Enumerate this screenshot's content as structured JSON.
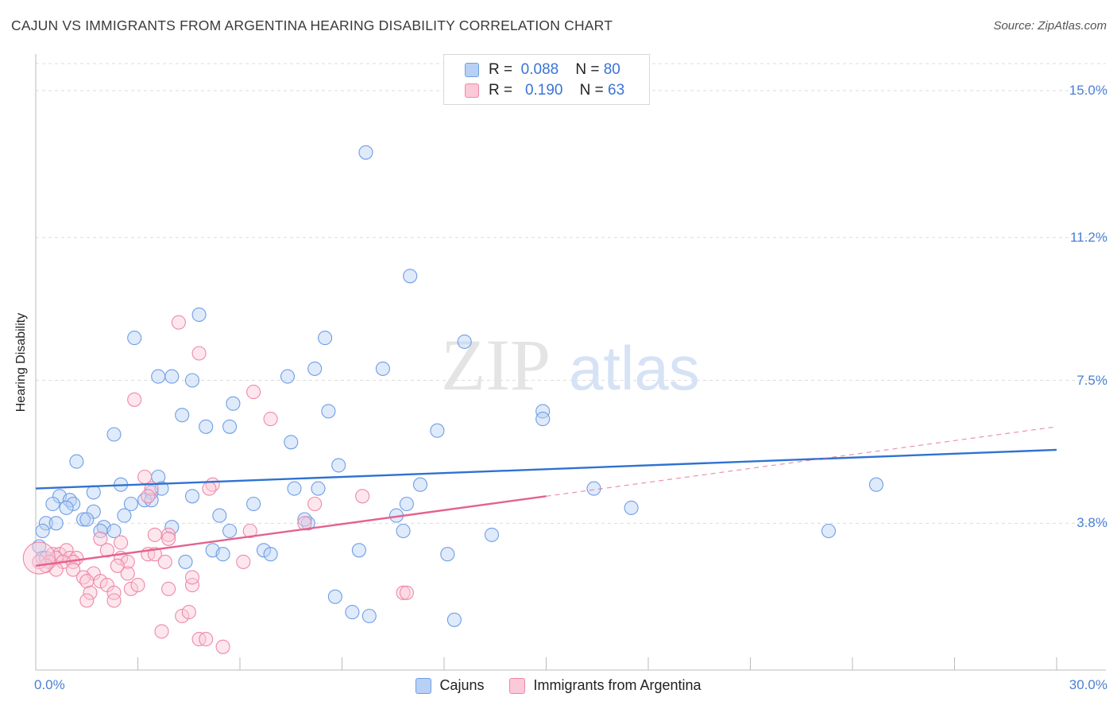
{
  "chart_data": {
    "type": "scatter",
    "title": "CAJUN VS IMMIGRANTS FROM ARGENTINA HEARING DISABILITY CORRELATION CHART",
    "source": "Source: ZipAtlas.com",
    "ylabel": "Hearing Disability",
    "xlabel": "",
    "xlim": [
      0,
      30
    ],
    "ylim": [
      0,
      15.7
    ],
    "x_tick_labels": [
      "0.0%",
      "30.0%"
    ],
    "y_ticks": [
      {
        "value": 15.0,
        "label": "15.0%"
      },
      {
        "value": 11.2,
        "label": "11.2%"
      },
      {
        "value": 7.5,
        "label": "7.5%"
      },
      {
        "value": 3.8,
        "label": "3.8%"
      }
    ],
    "watermark": "ZIPatlas",
    "legend": [
      {
        "r_label": "R =",
        "r_value": "0.088",
        "n_label": "N =",
        "n_value": "80"
      },
      {
        "r_label": "R =",
        "r_value": "0.190",
        "n_label": "N =",
        "n_value": "63"
      }
    ],
    "series": [
      {
        "name": "Cajuns",
        "color": "#6f9ee6",
        "fill": "#b8d0f4",
        "line_color": "#2f72d1",
        "trend": {
          "x0": 0,
          "y0": 4.7,
          "x1": 30,
          "y1": 5.7
        },
        "points": [
          [
            9.7,
            13.4
          ],
          [
            11.0,
            10.2
          ],
          [
            4.8,
            9.2
          ],
          [
            2.9,
            8.6
          ],
          [
            8.5,
            8.6
          ],
          [
            12.6,
            8.5
          ],
          [
            8.2,
            7.8
          ],
          [
            10.2,
            7.8
          ],
          [
            3.6,
            7.6
          ],
          [
            4.0,
            7.6
          ],
          [
            4.6,
            7.5
          ],
          [
            7.4,
            7.6
          ],
          [
            5.8,
            6.9
          ],
          [
            8.6,
            6.7
          ],
          [
            4.3,
            6.6
          ],
          [
            14.9,
            6.7
          ],
          [
            14.9,
            6.5
          ],
          [
            5.0,
            6.3
          ],
          [
            5.7,
            6.3
          ],
          [
            11.8,
            6.2
          ],
          [
            2.3,
            6.1
          ],
          [
            7.5,
            5.9
          ],
          [
            1.2,
            5.4
          ],
          [
            8.9,
            5.3
          ],
          [
            3.6,
            5.0
          ],
          [
            2.5,
            4.8
          ],
          [
            7.6,
            4.7
          ],
          [
            8.3,
            4.7
          ],
          [
            11.3,
            4.8
          ],
          [
            16.4,
            4.7
          ],
          [
            24.7,
            4.8
          ],
          [
            1.7,
            4.6
          ],
          [
            3.4,
            4.6
          ],
          [
            3.7,
            4.7
          ],
          [
            0.7,
            4.5
          ],
          [
            4.6,
            4.5
          ],
          [
            1.0,
            4.4
          ],
          [
            0.5,
            4.3
          ],
          [
            1.1,
            4.3
          ],
          [
            2.8,
            4.3
          ],
          [
            3.2,
            4.4
          ],
          [
            3.4,
            4.4
          ],
          [
            6.4,
            4.3
          ],
          [
            10.9,
            4.3
          ],
          [
            0.9,
            4.2
          ],
          [
            1.7,
            4.1
          ],
          [
            2.6,
            4.0
          ],
          [
            5.4,
            4.0
          ],
          [
            10.6,
            4.0
          ],
          [
            17.5,
            4.2
          ],
          [
            0.3,
            3.8
          ],
          [
            0.6,
            3.8
          ],
          [
            1.4,
            3.9
          ],
          [
            1.5,
            3.9
          ],
          [
            2.0,
            3.7
          ],
          [
            4.0,
            3.7
          ],
          [
            8.0,
            3.8
          ],
          [
            7.9,
            3.9
          ],
          [
            1.9,
            3.6
          ],
          [
            2.3,
            3.6
          ],
          [
            5.7,
            3.6
          ],
          [
            10.8,
            3.6
          ],
          [
            13.4,
            3.5
          ],
          [
            23.3,
            3.6
          ],
          [
            0.2,
            3.6
          ],
          [
            5.2,
            3.1
          ],
          [
            6.7,
            3.1
          ],
          [
            9.5,
            3.1
          ],
          [
            12.1,
            3.0
          ],
          [
            5.5,
            3.0
          ],
          [
            6.9,
            3.0
          ],
          [
            4.4,
            2.8
          ],
          [
            8.8,
            1.9
          ],
          [
            9.3,
            1.5
          ],
          [
            9.8,
            1.4
          ],
          [
            12.3,
            1.3
          ],
          [
            0.1,
            3.2
          ],
          [
            0.2,
            2.9
          ],
          [
            0.3,
            2.9
          ],
          [
            0.4,
            2.8
          ]
        ]
      },
      {
        "name": "Immigrants from Argentina",
        "color": "#ee88aa",
        "fill": "#fbc9d8",
        "line_color": "#e5618f",
        "trend": {
          "x0": 0,
          "y0": 2.7,
          "x1": 15,
          "y1": 4.5
        },
        "trend_dashed": {
          "x0": 15,
          "y0": 4.5,
          "x1": 30,
          "y1": 6.3
        },
        "points": [
          [
            4.2,
            9.0
          ],
          [
            4.8,
            8.2
          ],
          [
            6.4,
            7.2
          ],
          [
            2.9,
            7.0
          ],
          [
            6.9,
            6.5
          ],
          [
            3.2,
            5.0
          ],
          [
            3.4,
            4.7
          ],
          [
            5.2,
            4.8
          ],
          [
            3.3,
            4.5
          ],
          [
            9.6,
            4.5
          ],
          [
            8.2,
            4.3
          ],
          [
            7.9,
            3.8
          ],
          [
            6.3,
            3.6
          ],
          [
            3.5,
            3.5
          ],
          [
            3.9,
            3.5
          ],
          [
            3.9,
            3.4
          ],
          [
            1.9,
            3.4
          ],
          [
            2.5,
            3.3
          ],
          [
            2.1,
            3.1
          ],
          [
            3.3,
            3.0
          ],
          [
            3.5,
            3.0
          ],
          [
            0.5,
            3.0
          ],
          [
            0.7,
            3.0
          ],
          [
            0.9,
            3.1
          ],
          [
            0.6,
            2.9
          ],
          [
            1.0,
            2.9
          ],
          [
            1.2,
            2.9
          ],
          [
            2.5,
            2.9
          ],
          [
            2.7,
            2.8
          ],
          [
            0.4,
            2.8
          ],
          [
            0.8,
            2.8
          ],
          [
            1.1,
            2.8
          ],
          [
            0.3,
            2.7
          ],
          [
            0.6,
            2.6
          ],
          [
            1.1,
            2.6
          ],
          [
            2.4,
            2.7
          ],
          [
            3.8,
            2.8
          ],
          [
            6.1,
            2.8
          ],
          [
            5.1,
            4.7
          ],
          [
            2.7,
            2.5
          ],
          [
            1.7,
            2.5
          ],
          [
            1.4,
            2.4
          ],
          [
            1.5,
            2.3
          ],
          [
            1.9,
            2.3
          ],
          [
            2.1,
            2.2
          ],
          [
            4.6,
            2.2
          ],
          [
            4.6,
            2.4
          ],
          [
            3.9,
            2.1
          ],
          [
            2.8,
            2.1
          ],
          [
            3.0,
            2.2
          ],
          [
            1.6,
            2.0
          ],
          [
            2.3,
            2.0
          ],
          [
            10.8,
            2.0
          ],
          [
            10.9,
            2.0
          ],
          [
            1.5,
            1.8
          ],
          [
            2.3,
            1.8
          ],
          [
            4.3,
            1.4
          ],
          [
            4.5,
            1.5
          ],
          [
            3.7,
            1.0
          ],
          [
            4.8,
            0.8
          ],
          [
            5.0,
            0.8
          ],
          [
            5.5,
            0.6
          ],
          [
            0.1,
            2.8
          ]
        ]
      }
    ]
  }
}
